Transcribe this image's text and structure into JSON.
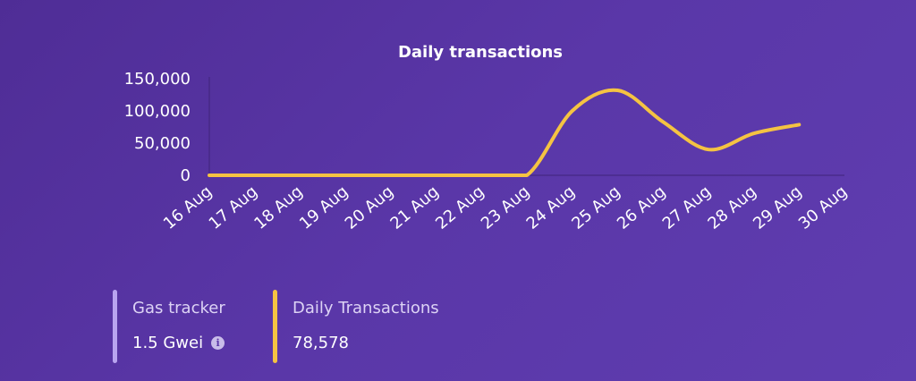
{
  "chart_data": {
    "type": "line",
    "title": "Daily transactions",
    "categories": [
      "16 Aug",
      "17 Aug",
      "18 Aug",
      "19 Aug",
      "20 Aug",
      "21 Aug",
      "22 Aug",
      "23 Aug",
      "24 Aug",
      "25 Aug",
      "26 Aug",
      "27 Aug",
      "28 Aug",
      "29 Aug",
      "30 Aug"
    ],
    "series": [
      {
        "color": "#f5c342",
        "values": [
          0,
          0,
          0,
          0,
          0,
          0,
          0,
          0,
          100000,
          132000,
          83000,
          40000,
          65000,
          78578,
          null
        ]
      }
    ],
    "yticks": [
      0,
      50000,
      100000,
      150000
    ],
    "ytick_labels": [
      "0",
      "50,000",
      "100,000",
      "150,000"
    ],
    "ylim": [
      0,
      150000
    ],
    "grid": false,
    "xlabel": "",
    "ylabel": ""
  },
  "stats": {
    "gas_tracker": {
      "label": "Gas tracker",
      "value": "1.5 Gwei",
      "color": "#b9a4f0",
      "icon": "info-icon"
    },
    "daily_transactions": {
      "label": "Daily Transactions",
      "value": "78,578",
      "color": "#f5c342"
    }
  },
  "colors": {
    "background": "#5a37a8",
    "axis": "#3f247a"
  }
}
